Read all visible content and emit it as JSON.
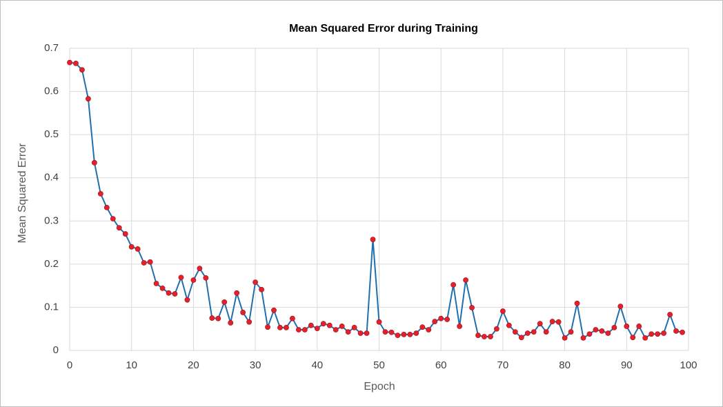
{
  "chart_data": {
    "type": "line",
    "title": "Mean Squared Error during Training",
    "x_label": "Epoch",
    "y_label": "Mean Squared Error",
    "x": [
      0,
      1,
      2,
      3,
      4,
      5,
      6,
      7,
      8,
      9,
      10,
      11,
      12,
      13,
      14,
      15,
      16,
      17,
      18,
      19,
      20,
      21,
      22,
      23,
      24,
      25,
      26,
      27,
      28,
      29,
      30,
      31,
      32,
      33,
      34,
      35,
      36,
      37,
      38,
      39,
      40,
      41,
      42,
      43,
      44,
      45,
      46,
      47,
      48,
      49,
      50,
      51,
      52,
      53,
      54,
      55,
      56,
      57,
      58,
      59,
      60,
      61,
      62,
      63,
      64,
      65,
      66,
      67,
      68,
      69,
      70,
      71,
      72,
      73,
      74,
      75,
      76,
      77,
      78,
      79,
      80,
      81,
      82,
      83,
      84,
      85,
      86,
      87,
      88,
      89,
      90,
      91,
      92,
      93,
      94,
      95,
      96,
      97,
      98,
      99
    ],
    "values": [
      0.667,
      0.665,
      0.65,
      0.583,
      0.435,
      0.363,
      0.331,
      0.305,
      0.284,
      0.27,
      0.24,
      0.235,
      0.203,
      0.205,
      0.155,
      0.144,
      0.133,
      0.131,
      0.169,
      0.117,
      0.163,
      0.19,
      0.168,
      0.075,
      0.074,
      0.112,
      0.064,
      0.133,
      0.088,
      0.066,
      0.158,
      0.141,
      0.054,
      0.093,
      0.053,
      0.053,
      0.074,
      0.048,
      0.048,
      0.058,
      0.051,
      0.062,
      0.058,
      0.048,
      0.056,
      0.043,
      0.053,
      0.04,
      0.04,
      0.257,
      0.066,
      0.043,
      0.042,
      0.035,
      0.037,
      0.037,
      0.04,
      0.054,
      0.048,
      0.067,
      0.074,
      0.072,
      0.152,
      0.056,
      0.163,
      0.099,
      0.035,
      0.032,
      0.032,
      0.05,
      0.091,
      0.058,
      0.043,
      0.03,
      0.04,
      0.043,
      0.062,
      0.043,
      0.067,
      0.066,
      0.029,
      0.043,
      0.109,
      0.029,
      0.038,
      0.048,
      0.045,
      0.04,
      0.053,
      0.102,
      0.056,
      0.03,
      0.056,
      0.029,
      0.038,
      0.038,
      0.04,
      0.083,
      0.045,
      0.042
    ],
    "line_color": "#1f6fae",
    "marker_color": "#e3202b",
    "xlim": [
      0,
      100
    ],
    "xticks": [
      0,
      10,
      20,
      30,
      40,
      50,
      60,
      70,
      80,
      90,
      100
    ],
    "ylim": [
      0,
      0.7
    ],
    "yticks": [
      0,
      0.1,
      0.2,
      0.3,
      0.4,
      0.5,
      0.6,
      0.7
    ],
    "grid": true
  }
}
